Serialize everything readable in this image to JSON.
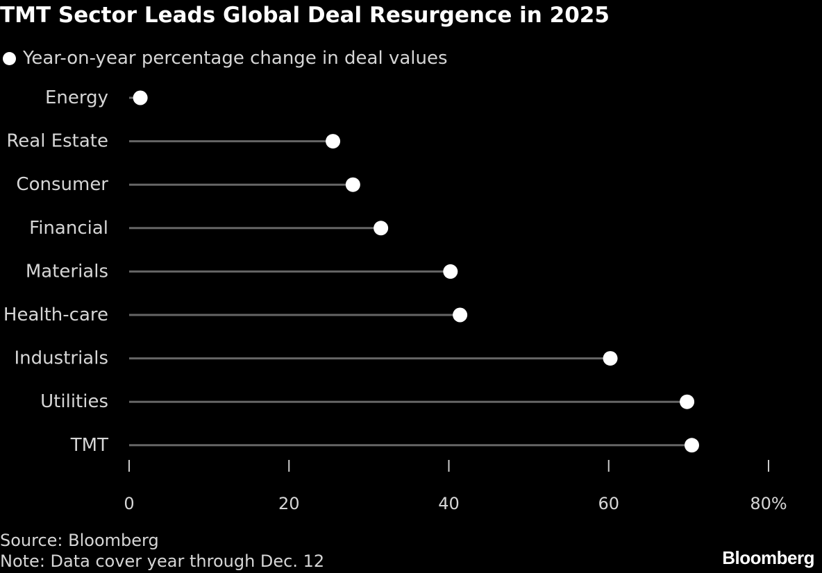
{
  "title": "TMT Sector Leads Global Deal Resurgence in 2025",
  "legend": {
    "label": "Year-on-year percentage change in deal values"
  },
  "chart_data": {
    "type": "lollipop",
    "categories": [
      "Energy",
      "Real Estate",
      "Consumer",
      "Financial",
      "Materials",
      "Health-care",
      "Industrials",
      "Utilities",
      "TMT"
    ],
    "series": [
      {
        "name": "Year-on-year percentage change in deal values",
        "values": [
          1.4,
          25.5,
          28.0,
          31.5,
          40.2,
          41.4,
          60.2,
          69.8,
          70.4
        ]
      }
    ],
    "xlim": [
      0,
      80
    ],
    "xticks": [
      0,
      20,
      40,
      60,
      80
    ],
    "xtick_labels": [
      "0",
      "20",
      "40",
      "60",
      "80%"
    ],
    "xlabel": "",
    "ylabel": "",
    "colors": {
      "background": "#000000",
      "dot": "#ffffff",
      "stem": "#666666",
      "label": "#d6d6d6",
      "tick": "#cccccc"
    }
  },
  "footer": {
    "source": "Source: Bloomberg",
    "note": "Note: Data cover year through Dec. 12"
  },
  "brand": "Bloomberg"
}
